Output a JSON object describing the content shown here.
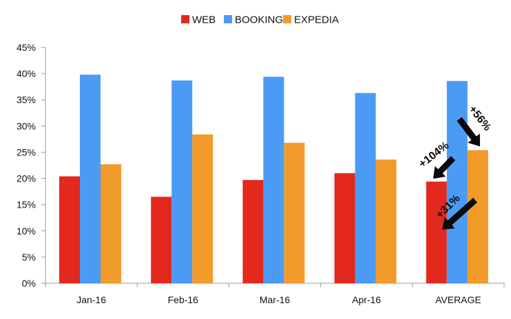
{
  "chart_data": {
    "type": "bar",
    "categories": [
      "Jan-16",
      "Feb-16",
      "Mar-16",
      "Apr-16",
      "AVERAGE"
    ],
    "series": [
      {
        "name": "WEB",
        "color": "#e3281e",
        "values": [
          20.4,
          16.5,
          19.7,
          21.0,
          19.4
        ]
      },
      {
        "name": "BOOKING",
        "color": "#4b9bf5",
        "values": [
          39.8,
          38.7,
          39.4,
          36.3,
          38.6
        ]
      },
      {
        "name": "EXPEDIA",
        "color": "#f29a2a",
        "values": [
          22.7,
          28.4,
          26.8,
          23.6,
          25.4
        ]
      }
    ],
    "yticks": [
      "0%",
      "5%",
      "10%",
      "15%",
      "20%",
      "25%",
      "30%",
      "35%",
      "40%",
      "45%"
    ],
    "ylim": [
      0,
      45
    ],
    "grid": false,
    "legend_position": "top-center",
    "annotations": [
      {
        "text": "+104%"
      },
      {
        "text": "+56%"
      },
      {
        "text": "+31%"
      }
    ]
  }
}
